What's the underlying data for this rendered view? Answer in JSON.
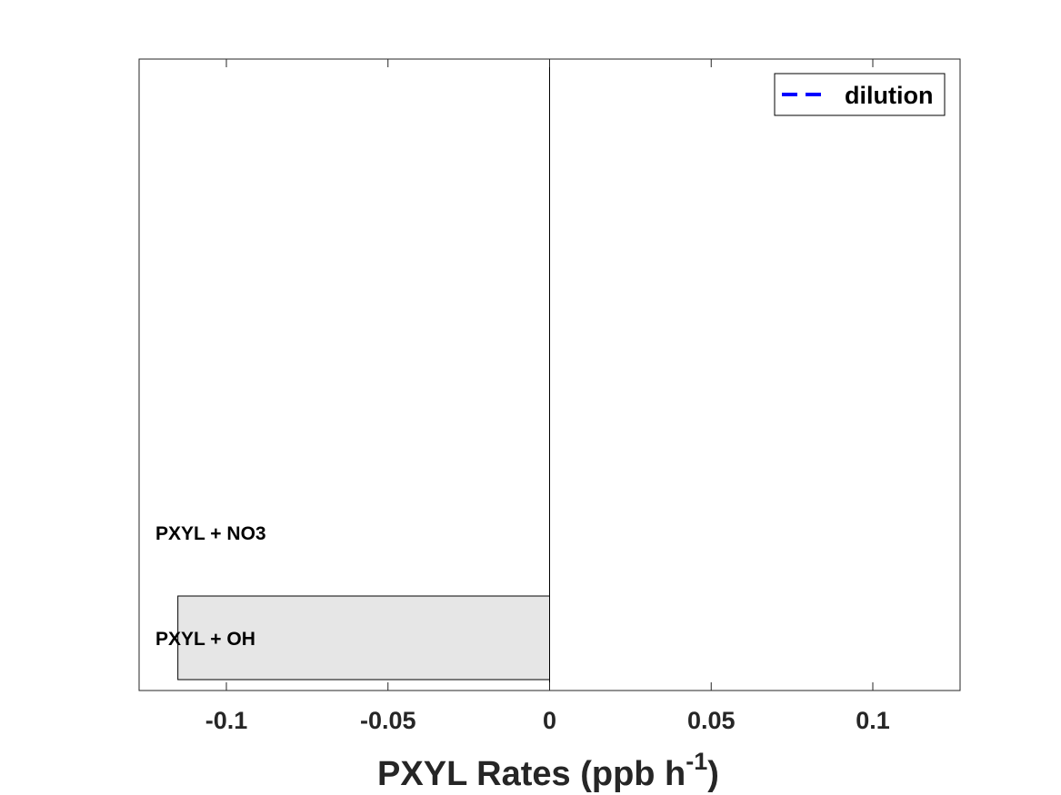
{
  "chart_data": {
    "type": "bar",
    "orientation": "horizontal",
    "categories": [
      "PXYL + OH",
      "PXYL + NO3"
    ],
    "values": [
      -0.115,
      0
    ],
    "xlim": [
      -0.127,
      0.127
    ],
    "xticks": [
      -0.1,
      -0.05,
      0,
      0.05,
      0.1
    ],
    "xtick_labels": [
      "-0.1",
      "-0.05",
      "0",
      "0.05",
      "0.1"
    ],
    "xlabel": {
      "main": "PXYL Rates (ppb h",
      "superscript": "-1",
      "close": ")"
    },
    "legend": {
      "entries": [
        {
          "label": "dilution",
          "style": "dashed",
          "color": "#0000ff"
        }
      ],
      "placement": "top-right"
    },
    "bar_color": "#e6e6e6",
    "grid": false
  }
}
